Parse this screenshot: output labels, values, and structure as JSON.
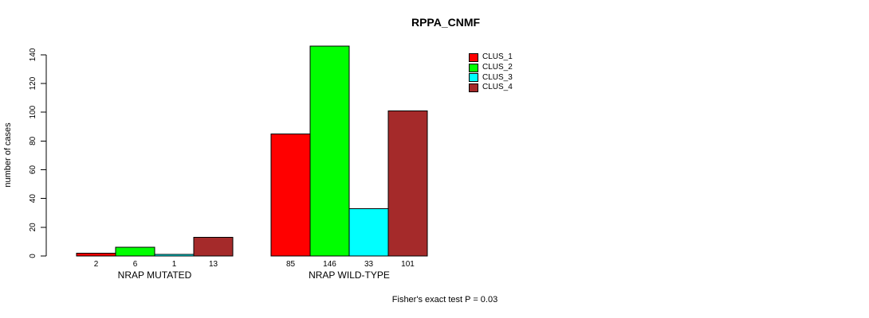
{
  "chart_data": {
    "type": "bar",
    "title": "RPPA_CNMF",
    "ylabel": "number of cases",
    "xlabel": "",
    "categories": [
      "NRAP MUTATED",
      "NRAP WILD-TYPE"
    ],
    "series": [
      {
        "name": "CLUS_1",
        "color": "#FF0000",
        "values": [
          2,
          85
        ]
      },
      {
        "name": "CLUS_2",
        "color": "#00FF00",
        "values": [
          6,
          146
        ]
      },
      {
        "name": "CLUS_3",
        "color": "#00FFFF",
        "values": [
          1,
          33
        ]
      },
      {
        "name": "CLUS_4",
        "color": "#A52A2A",
        "values": [
          13,
          101
        ]
      }
    ],
    "yticks": [
      0,
      20,
      40,
      60,
      80,
      100,
      120,
      140
    ],
    "ylim": [
      0,
      140
    ],
    "grid": false,
    "bar_value_labels_shown": true,
    "legend_position": "top-right",
    "annotation": "Fisher's exact test P = 0.03",
    "axis_color": "#000000",
    "background_color": "#FFFFFF"
  }
}
